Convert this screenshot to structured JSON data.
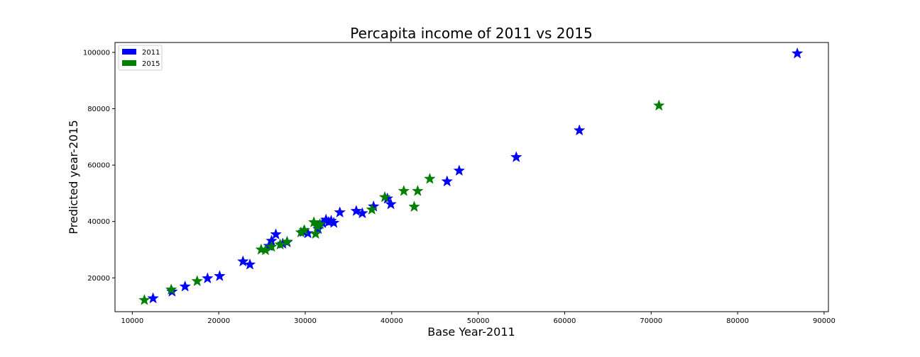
{
  "chart_data": {
    "type": "scatter",
    "title": "Percapita income of 2011 vs 2015",
    "xlabel": "Base Year-2011",
    "ylabel": "Predicted year-2015",
    "xlim": [
      8000,
      90500
    ],
    "ylim": [
      8000,
      103500
    ],
    "xticks": [
      10000,
      20000,
      30000,
      40000,
      50000,
      60000,
      70000,
      80000,
      90000
    ],
    "yticks": [
      20000,
      40000,
      60000,
      80000,
      100000
    ],
    "grid": false,
    "legend_position": "top-left",
    "marker": "star",
    "series": [
      {
        "name": "2011",
        "color": "#0000ff",
        "points": [
          [
            12400,
            12700
          ],
          [
            14600,
            15100
          ],
          [
            16100,
            16900
          ],
          [
            18700,
            19800
          ],
          [
            20100,
            20600
          ],
          [
            22800,
            25800
          ],
          [
            23600,
            24700
          ],
          [
            25800,
            31300
          ],
          [
            26100,
            33100
          ],
          [
            26600,
            35400
          ],
          [
            27400,
            32100
          ],
          [
            27900,
            32600
          ],
          [
            29800,
            36300
          ],
          [
            30300,
            35800
          ],
          [
            31500,
            37300
          ],
          [
            32000,
            39400
          ],
          [
            32400,
            40600
          ],
          [
            32700,
            39800
          ],
          [
            33000,
            40200
          ],
          [
            33300,
            39500
          ],
          [
            34000,
            43200
          ],
          [
            35900,
            43700
          ],
          [
            36600,
            42900
          ],
          [
            37900,
            45300
          ],
          [
            39500,
            48100
          ],
          [
            39900,
            46100
          ],
          [
            46400,
            54200
          ],
          [
            47800,
            58000
          ],
          [
            54400,
            62800
          ],
          [
            61700,
            72300
          ],
          [
            86900,
            99600
          ]
        ]
      },
      {
        "name": "2015",
        "color": "#008000",
        "points": [
          [
            11400,
            12100
          ],
          [
            14500,
            15800
          ],
          [
            17500,
            18800
          ],
          [
            24900,
            30000
          ],
          [
            25400,
            29800
          ],
          [
            26100,
            31000
          ],
          [
            27100,
            31800
          ],
          [
            27900,
            32800
          ],
          [
            29500,
            36100
          ],
          [
            29900,
            36900
          ],
          [
            31000,
            39700
          ],
          [
            31200,
            35600
          ],
          [
            31400,
            38200
          ],
          [
            31700,
            39000
          ],
          [
            37700,
            44200
          ],
          [
            39200,
            48600
          ],
          [
            41400,
            50800
          ],
          [
            42600,
            45200
          ],
          [
            43000,
            50800
          ],
          [
            44400,
            55100
          ],
          [
            70900,
            81100
          ]
        ]
      }
    ]
  }
}
